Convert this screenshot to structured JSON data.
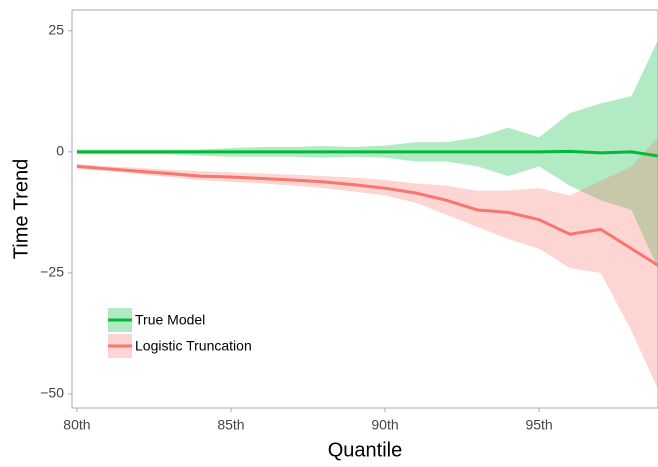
{
  "chart_data": {
    "type": "line",
    "x_label": "Quantile",
    "y_label": "Time Trend",
    "x": [
      80,
      81,
      82,
      83,
      84,
      85,
      86,
      87,
      88,
      89,
      90,
      91,
      92,
      93,
      94,
      95,
      96,
      97,
      98,
      99
    ],
    "series": [
      {
        "name": "True Model",
        "color": "#00ba38",
        "values": [
          0,
          0,
          0,
          0,
          0,
          0,
          0,
          0,
          0,
          0,
          0,
          0,
          0,
          0,
          0,
          0,
          0.1,
          -0.2,
          0,
          -1
        ],
        "upper": [
          0.5,
          0.5,
          0.5,
          0.5,
          0.5,
          0.8,
          1,
          1,
          1.2,
          1,
          1.3,
          2,
          2,
          3,
          5,
          3,
          8,
          10,
          11.5,
          25
        ],
        "lower": [
          -0.5,
          -0.5,
          -0.5,
          -0.5,
          -0.8,
          -1,
          -1,
          -1,
          -1.2,
          -1,
          -1.2,
          -2,
          -2,
          -3,
          -5,
          -3,
          -7,
          -10,
          -12,
          -26
        ]
      },
      {
        "name": "Logistic Truncation",
        "color": "#f8766d",
        "values": [
          -3,
          -3.5,
          -4,
          -4.5,
          -5,
          -5.2,
          -5.5,
          -5.8,
          -6.2,
          -6.8,
          -7.5,
          -8.5,
          -10,
          -12,
          -12.5,
          -14,
          -17,
          -16,
          -20,
          -24
        ],
        "upper": [
          -2.5,
          -3,
          -3.3,
          -3.7,
          -4,
          -4.2,
          -4.5,
          -4.7,
          -5,
          -5.3,
          -5.8,
          -6.5,
          -7,
          -8,
          -8,
          -7.5,
          -9,
          -6,
          -3,
          4
        ],
        "lower": [
          -3.5,
          -4,
          -4.6,
          -5.2,
          -5.8,
          -6.2,
          -6.5,
          -7,
          -7.5,
          -8.2,
          -9,
          -10.5,
          -13,
          -15.5,
          -18,
          -20,
          -24,
          -25,
          -37,
          -51
        ]
      }
    ],
    "xlim": [
      79.84,
      98.86
    ],
    "ylim": [
      -52.9,
      29.3
    ],
    "xticks": [
      {
        "value": 80,
        "label": "80th"
      },
      {
        "value": 85,
        "label": "85th"
      },
      {
        "value": 90,
        "label": "90th"
      },
      {
        "value": 95,
        "label": "95th"
      }
    ],
    "yticks": [
      25,
      0,
      {
        "value": -25,
        "label": "−25"
      },
      {
        "value": -50,
        "label": "−50"
      }
    ],
    "legend": "bottom-left"
  }
}
